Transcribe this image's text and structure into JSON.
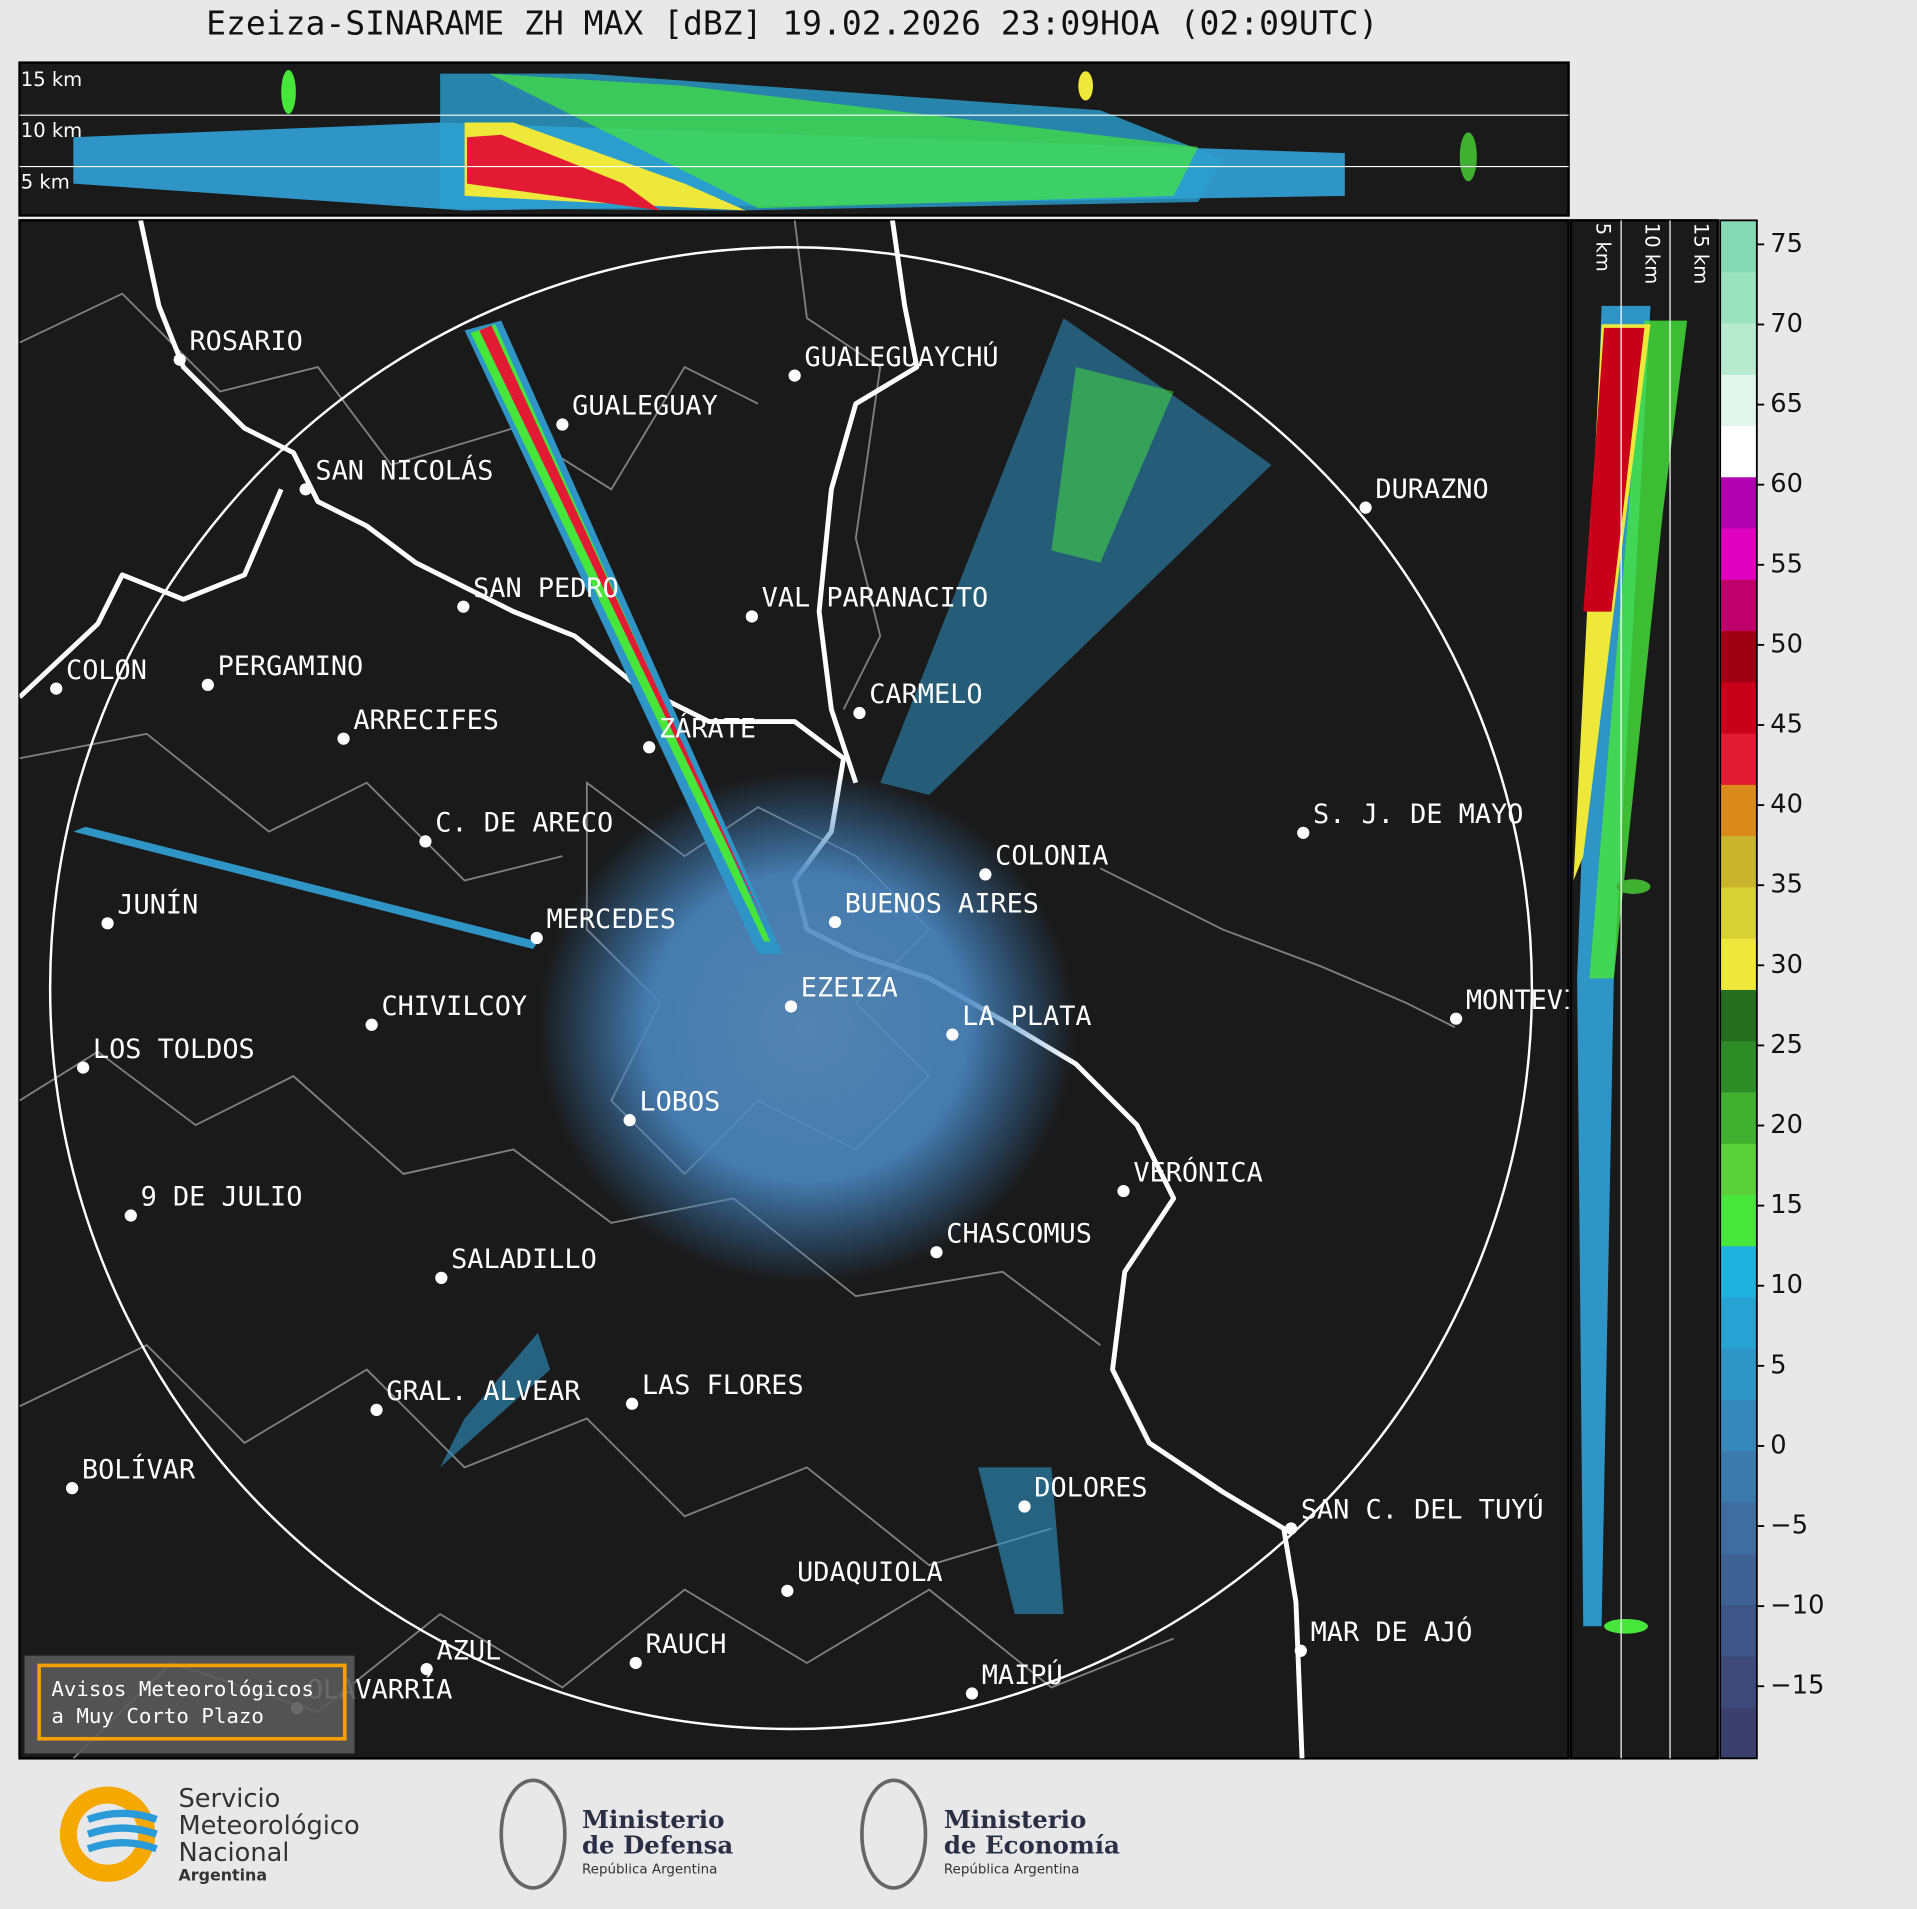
{
  "title": "Ezeiza-SINARAME ZH MAX [dBZ] 19.02.2026 23:09HOA (02:09UTC)",
  "top_section_labels": [
    "15 km",
    "10 km",
    "5 km"
  ],
  "side_section_labels": [
    "5 km",
    "10 km",
    "15 km"
  ],
  "cities": [
    "ROSARIO",
    "GUALEGUAYCHÚ",
    "GUALEGUAY",
    "SAN NICOLÁS",
    "DURAZNO",
    "SAN PEDRO",
    "VAL PARANACITO",
    "COLON",
    "PERGAMINO",
    "CARMELO",
    "ARRECIFES",
    "ZÁRATE",
    "C. DE ARECO",
    "S. J. DE MAYO",
    "COLONIA",
    "BUENOS AIRES",
    "JUNÍN",
    "MERCEDES",
    "EZEIZA",
    "MONTEVIDEO",
    "CHIVILCOY",
    "LA PLATA",
    "LOS TOLDOS",
    "LOBOS",
    "VERÓNICA",
    "9 DE JULIO",
    "CHASCOMUS",
    "SALADILLO",
    "GRAL. ALVEAR",
    "LAS FLORES",
    "BOLÍVAR",
    "DOLORES",
    "SAN C. DEL TUYÚ",
    "UDAQUIOLA",
    "RAUCH",
    "MAR DE AJÓ",
    "AZUL",
    "MAIPÚ",
    "OLAVARRÍA"
  ],
  "colorbar": {
    "lim": [
      -19.5,
      76.5
    ],
    "ticks": [
      75,
      70,
      65,
      60,
      55,
      50,
      45,
      40,
      35,
      30,
      25,
      20,
      15,
      10,
      5,
      0,
      {
        "value": -5,
        "label": "−5"
      },
      {
        "value": -10,
        "label": "−10"
      },
      {
        "value": -15,
        "label": "−15"
      }
    ],
    "colors": [
      "#3b3f6e",
      "#3d4a7a",
      "#3e5587",
      "#3f6294",
      "#3e6ea1",
      "#3b7aad",
      "#3687ba",
      "#2f95c6",
      "#26a3d2",
      "#1fb2de",
      "#46e63a",
      "#5ad03a",
      "#3fb030",
      "#2e8c26",
      "#246e1e",
      "#ede83a",
      "#d7d136",
      "#c9b52c",
      "#d98a1a",
      "#e21a33",
      "#c8001a",
      "#a00014",
      "#c0006a",
      "#e000c0",
      "#b000b0",
      "#ffffff",
      "#e2f5ea",
      "#b8ead0",
      "#9be2c0",
      "#85d9b4"
    ]
  },
  "notice": [
    "Avisos Meteorológicos",
    "a Muy Corto Plazo"
  ],
  "logos": {
    "smn": [
      "Servicio",
      "Meteorológico",
      "Nacional",
      "Argentina"
    ],
    "defensa": [
      "Ministerio",
      "de Defensa",
      "República Argentina"
    ],
    "economia": [
      "Ministerio",
      "de Economía",
      "República Argentina"
    ]
  }
}
